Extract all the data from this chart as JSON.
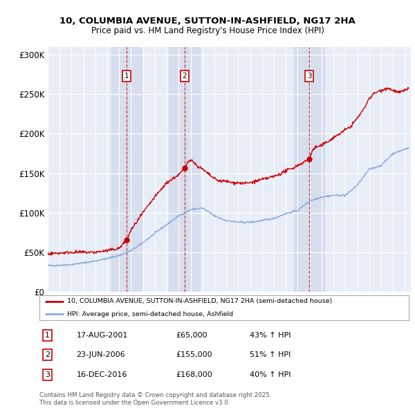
{
  "title_line1": "10, COLUMBIA AVENUE, SUTTON-IN-ASHFIELD, NG17 2HA",
  "title_line2": "Price paid vs. HM Land Registry's House Price Index (HPI)",
  "bg_color": "#ffffff",
  "plot_bg_color": "#e8eef8",
  "grid_color": "#ffffff",
  "sale_color": "#cc0000",
  "hpi_color": "#88aadd",
  "sale_label": "10, COLUMBIA AVENUE, SUTTON-IN-ASHFIELD, NG17 2HA (semi-detached house)",
  "hpi_label": "HPI: Average price, semi-detached house, Ashfield",
  "transactions": [
    {
      "num": 1,
      "date": "17-AUG-2001",
      "price": 65000,
      "pct": "43% ↑ HPI",
      "year": 2001.62
    },
    {
      "num": 2,
      "date": "23-JUN-2006",
      "price": 155000,
      "pct": "51% ↑ HPI",
      "year": 2006.48
    },
    {
      "num": 3,
      "date": "16-DEC-2016",
      "price": 168000,
      "pct": "40% ↑ HPI",
      "year": 2016.96
    }
  ],
  "footer": "Contains HM Land Registry data © Crown copyright and database right 2025.\nThis data is licensed under the Open Government Licence v3.0.",
  "ylim_max": 310000,
  "xlim_start": 1995.0,
  "xlim_end": 2025.5,
  "yticks": [
    0,
    50000,
    100000,
    150000,
    200000,
    250000,
    300000
  ],
  "ylabels": [
    "£0",
    "£50K",
    "£100K",
    "£150K",
    "£200K",
    "£250K",
    "£300K"
  ],
  "hpi_anchors_x": [
    1995,
    1996,
    1997,
    1998,
    1999,
    2000,
    2001,
    2002,
    2003,
    2004,
    2005,
    2006,
    2007,
    2008,
    2009,
    2010,
    2011,
    2012,
    2013,
    2014,
    2015,
    2016,
    2017,
    2018,
    2019,
    2020,
    2021,
    2022,
    2023,
    2024,
    2025.3
  ],
  "hpi_anchors_y": [
    33000,
    33500,
    34500,
    36500,
    39000,
    42000,
    46000,
    52000,
    62000,
    74000,
    85000,
    96000,
    104000,
    106000,
    96000,
    90000,
    88000,
    88000,
    90000,
    93000,
    99000,
    103000,
    115000,
    120000,
    122000,
    122000,
    135000,
    155000,
    160000,
    175000,
    182000
  ],
  "sale_anchors_x": [
    1995,
    1996,
    1997,
    1998,
    1999,
    2000,
    2001,
    2001.62,
    2002,
    2003,
    2004,
    2005,
    2006,
    2006.48,
    2006.7,
    2007,
    2007.5,
    2008,
    2008.5,
    2009,
    2009.5,
    2010,
    2010.5,
    2011,
    2011.5,
    2012,
    2012.5,
    2013,
    2013.5,
    2014,
    2014.5,
    2015,
    2015.5,
    2016,
    2016.5,
    2016.96,
    2017.2,
    2017.5,
    2018,
    2018.5,
    2019,
    2019.5,
    2020,
    2020.5,
    2021,
    2021.5,
    2022,
    2022.5,
    2023,
    2023.5,
    2024,
    2024.5,
    2025,
    2025.3
  ],
  "sale_anchors_y": [
    48000,
    49000,
    50000,
    50000,
    50000,
    52000,
    55000,
    65000,
    78000,
    100000,
    120000,
    138000,
    148000,
    155000,
    163000,
    168000,
    160000,
    155000,
    149000,
    143000,
    140000,
    140000,
    138000,
    138000,
    137000,
    138000,
    140000,
    142000,
    144000,
    146000,
    149000,
    153000,
    156000,
    160000,
    164000,
    168000,
    178000,
    183000,
    185000,
    190000,
    195000,
    200000,
    205000,
    210000,
    220000,
    230000,
    245000,
    252000,
    255000,
    258000,
    255000,
    252000,
    255000,
    258000
  ]
}
